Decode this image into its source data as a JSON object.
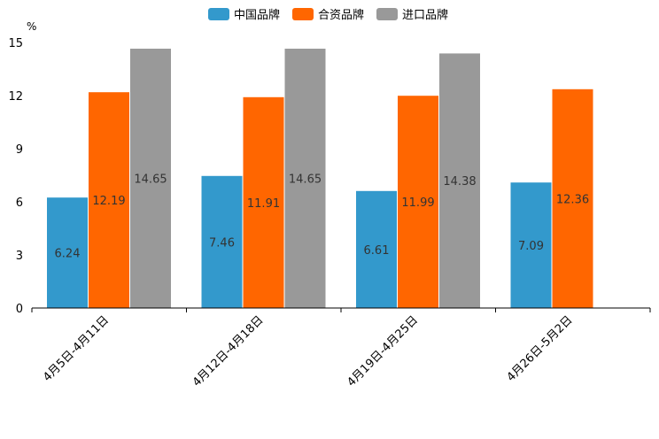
{
  "chart_data": {
    "type": "bar",
    "unit": "%",
    "categories": [
      "4月5日-4月11日",
      "4月12日-4月18日",
      "4月19日-4月25日",
      "4月26日-5月2日"
    ],
    "series": [
      {
        "name": "中国品牌",
        "color": "#3399cc",
        "values": [
          6.24,
          7.46,
          6.61,
          7.09
        ]
      },
      {
        "name": "合资品牌",
        "color": "#ff6600",
        "values": [
          12.19,
          11.91,
          11.99,
          12.36
        ]
      },
      {
        "name": "进口品牌",
        "color": "#999999",
        "values": [
          14.65,
          14.65,
          14.38,
          null
        ]
      }
    ],
    "ylim": [
      0,
      15
    ],
    "yticks": [
      0,
      3,
      6,
      9,
      12,
      15
    ],
    "legend_position": "top-center",
    "grid": false
  }
}
